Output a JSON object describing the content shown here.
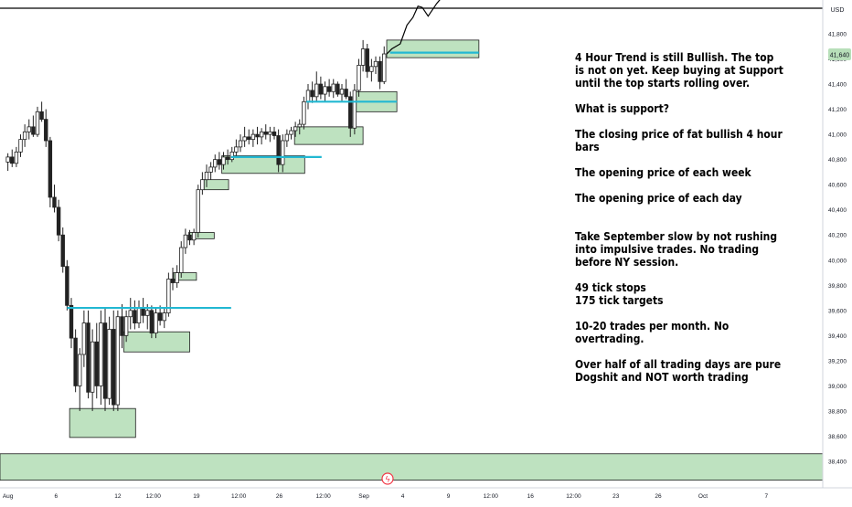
{
  "chart_data": {
    "type": "candlestick",
    "title": "",
    "currency_label": "USD",
    "last_price_label": "41,640",
    "y_ticks": [
      {
        "value": 41800,
        "label": "41,800"
      },
      {
        "value": 41600,
        "label": "41,600"
      },
      {
        "value": 41400,
        "label": "41,400"
      },
      {
        "value": 41200,
        "label": "41,200"
      },
      {
        "value": 41000,
        "label": "41,000"
      },
      {
        "value": 40800,
        "label": "40,800"
      },
      {
        "value": 40600,
        "label": "40,600"
      },
      {
        "value": 40400,
        "label": "40,400"
      },
      {
        "value": 40200,
        "label": "40,200"
      },
      {
        "value": 40000,
        "label": "40,000"
      },
      {
        "value": 39800,
        "label": "39,800"
      },
      {
        "value": 39600,
        "label": "39,600"
      },
      {
        "value": 39400,
        "label": "39,400"
      },
      {
        "value": 39200,
        "label": "39,200"
      },
      {
        "value": 39000,
        "label": "39,000"
      },
      {
        "value": 38800,
        "label": "38,800"
      },
      {
        "value": 38600,
        "label": "38,600"
      },
      {
        "value": 38400,
        "label": "38,400"
      }
    ],
    "x_ticks": [
      {
        "label": "Aug",
        "t": 0.5
      },
      {
        "label": "6",
        "t": 6.2
      },
      {
        "label": "12",
        "t": 13.5
      },
      {
        "label": "12:00",
        "t": 17.7
      },
      {
        "label": "19",
        "t": 22.8
      },
      {
        "label": "12:00",
        "t": 27.8
      },
      {
        "label": "26",
        "t": 32.6
      },
      {
        "label": "12:00",
        "t": 37.8
      },
      {
        "label": "Sep",
        "t": 42.6
      },
      {
        "label": "4",
        "t": 47.2
      },
      {
        "label": "9",
        "t": 52.6
      },
      {
        "label": "12:00",
        "t": 57.6
      },
      {
        "label": "16",
        "t": 62.3
      },
      {
        "label": "12:00",
        "t": 67.4
      },
      {
        "label": "23",
        "t": 72.4
      },
      {
        "label": "26",
        "t": 77.4
      },
      {
        "label": "Oct",
        "t": 82.7
      },
      {
        "label": "7",
        "t": 90.2
      }
    ],
    "support_zones": [
      {
        "t0": 7.8,
        "t1": 15.6,
        "y0": 38590,
        "y1": 38820
      },
      {
        "t0": 14.2,
        "t1": 22.0,
        "y0": 39270,
        "y1": 39430
      },
      {
        "t0": 20.1,
        "t1": 22.8,
        "y0": 39840,
        "y1": 39900
      },
      {
        "t0": 21.9,
        "t1": 24.9,
        "y0": 40170,
        "y1": 40220
      },
      {
        "t0": 23.7,
        "t1": 26.6,
        "y0": 40560,
        "y1": 40640
      },
      {
        "t0": 25.8,
        "t1": 35.6,
        "y0": 40690,
        "y1": 40830
      },
      {
        "t0": 34.4,
        "t1": 42.5,
        "y0": 40920,
        "y1": 41060
      },
      {
        "t0": 41.7,
        "t1": 46.5,
        "y0": 41180,
        "y1": 41340
      },
      {
        "t0": 45.3,
        "t1": 56.2,
        "y0": 41610,
        "y1": 41750
      },
      {
        "t0": 0,
        "t1": 100,
        "y0": 38250,
        "y1": 38460
      }
    ],
    "support_lines": [
      {
        "t0": 7.5,
        "t1": 26.9,
        "y": 39620
      },
      {
        "t0": 26.9,
        "t1": 37.6,
        "y": 40820
      },
      {
        "t0": 35.8,
        "t1": 46.5,
        "y": 41260
      },
      {
        "t0": 45.7,
        "t1": 56.2,
        "y": 41650
      }
    ],
    "projection_path": [
      [
        45.3,
        41640
      ],
      [
        45.9,
        41680
      ],
      [
        46.9,
        41720
      ],
      [
        47.7,
        41870
      ],
      [
        48.4,
        41930
      ],
      [
        49.0,
        42020
      ],
      [
        49.5,
        42010
      ],
      [
        50.2,
        41940
      ],
      [
        51.2,
        42040
      ],
      [
        52.2,
        42120
      ]
    ],
    "candles": [
      {
        "t": 0.5,
        "o": 40780,
        "h": 40850,
        "l": 40710,
        "c": 40820
      },
      {
        "t": 1.0,
        "o": 40820,
        "h": 40880,
        "l": 40740,
        "c": 40770
      },
      {
        "t": 1.5,
        "o": 40770,
        "h": 40900,
        "l": 40740,
        "c": 40860
      },
      {
        "t": 2.0,
        "o": 40860,
        "h": 41000,
        "l": 40820,
        "c": 40960
      },
      {
        "t": 2.5,
        "o": 40960,
        "h": 41080,
        "l": 40900,
        "c": 41020
      },
      {
        "t": 3.0,
        "o": 41020,
        "h": 41120,
        "l": 40960,
        "c": 41060
      },
      {
        "t": 3.5,
        "o": 41060,
        "h": 41150,
        "l": 40980,
        "c": 41000
      },
      {
        "t": 4.0,
        "o": 41000,
        "h": 41220,
        "l": 40980,
        "c": 41180
      },
      {
        "t": 4.5,
        "o": 41180,
        "h": 41260,
        "l": 41100,
        "c": 41120
      },
      {
        "t": 5.0,
        "o": 41120,
        "h": 41200,
        "l": 40900,
        "c": 40950
      },
      {
        "t": 5.5,
        "o": 40950,
        "h": 40980,
        "l": 40420,
        "c": 40500
      },
      {
        "t": 6.0,
        "o": 40500,
        "h": 40600,
        "l": 40380,
        "c": 40420
      },
      {
        "t": 6.5,
        "o": 40420,
        "h": 40480,
        "l": 40150,
        "c": 40200
      },
      {
        "t": 7.0,
        "o": 40200,
        "h": 40260,
        "l": 39900,
        "c": 39950
      },
      {
        "t": 7.5,
        "o": 39950,
        "h": 40000,
        "l": 39600,
        "c": 39640
      },
      {
        "t": 8.0,
        "o": 39640,
        "h": 39700,
        "l": 39300,
        "c": 39380
      },
      {
        "t": 8.5,
        "o": 39380,
        "h": 39450,
        "l": 38950,
        "c": 39000
      },
      {
        "t": 9.0,
        "o": 39000,
        "h": 39300,
        "l": 38800,
        "c": 39250
      },
      {
        "t": 9.5,
        "o": 39250,
        "h": 39600,
        "l": 39150,
        "c": 39500
      },
      {
        "t": 10.0,
        "o": 39500,
        "h": 39600,
        "l": 38900,
        "c": 38950
      },
      {
        "t": 10.5,
        "o": 38950,
        "h": 39450,
        "l": 38800,
        "c": 39350
      },
      {
        "t": 11.0,
        "o": 39350,
        "h": 39500,
        "l": 38900,
        "c": 39000
      },
      {
        "t": 11.5,
        "o": 39000,
        "h": 39600,
        "l": 38850,
        "c": 39500
      },
      {
        "t": 12.0,
        "o": 39500,
        "h": 39620,
        "l": 38800,
        "c": 38900
      },
      {
        "t": 12.5,
        "o": 38900,
        "h": 39550,
        "l": 38850,
        "c": 39450
      },
      {
        "t": 13.0,
        "o": 39450,
        "h": 39600,
        "l": 38800,
        "c": 38850
      },
      {
        "t": 13.5,
        "o": 38850,
        "h": 39600,
        "l": 38800,
        "c": 39550
      },
      {
        "t": 14.0,
        "o": 39550,
        "h": 39650,
        "l": 39300,
        "c": 39400
      },
      {
        "t": 14.5,
        "o": 39400,
        "h": 39600,
        "l": 39350,
        "c": 39550
      },
      {
        "t": 15.0,
        "o": 39550,
        "h": 39700,
        "l": 39450,
        "c": 39600
      },
      {
        "t": 15.5,
        "o": 39600,
        "h": 39680,
        "l": 39450,
        "c": 39500
      },
      {
        "t": 16.0,
        "o": 39500,
        "h": 39680,
        "l": 39460,
        "c": 39620
      },
      {
        "t": 16.5,
        "o": 39620,
        "h": 39700,
        "l": 39500,
        "c": 39560
      },
      {
        "t": 17.0,
        "o": 39560,
        "h": 39650,
        "l": 39450,
        "c": 39600
      },
      {
        "t": 17.5,
        "o": 39600,
        "h": 39640,
        "l": 39380,
        "c": 39420
      },
      {
        "t": 18.0,
        "o": 39420,
        "h": 39620,
        "l": 39380,
        "c": 39580
      },
      {
        "t": 18.5,
        "o": 39580,
        "h": 39640,
        "l": 39480,
        "c": 39520
      },
      {
        "t": 19.0,
        "o": 39520,
        "h": 39620,
        "l": 39460,
        "c": 39580
      },
      {
        "t": 19.5,
        "o": 39580,
        "h": 39900,
        "l": 39550,
        "c": 39850
      },
      {
        "t": 20.0,
        "o": 39850,
        "h": 39940,
        "l": 39760,
        "c": 39820
      },
      {
        "t": 20.5,
        "o": 39820,
        "h": 39960,
        "l": 39780,
        "c": 39900
      },
      {
        "t": 21.0,
        "o": 39900,
        "h": 40150,
        "l": 39860,
        "c": 40100
      },
      {
        "t": 21.5,
        "o": 40100,
        "h": 40250,
        "l": 40050,
        "c": 40200
      },
      {
        "t": 22.0,
        "o": 40200,
        "h": 40240,
        "l": 40120,
        "c": 40160
      },
      {
        "t": 22.5,
        "o": 40160,
        "h": 40250,
        "l": 40120,
        "c": 40220
      },
      {
        "t": 23.0,
        "o": 40220,
        "h": 40600,
        "l": 40180,
        "c": 40560
      },
      {
        "t": 23.5,
        "o": 40560,
        "h": 40700,
        "l": 40520,
        "c": 40640
      },
      {
        "t": 24.0,
        "o": 40640,
        "h": 40760,
        "l": 40580,
        "c": 40700
      },
      {
        "t": 24.5,
        "o": 40700,
        "h": 40780,
        "l": 40640,
        "c": 40740
      },
      {
        "t": 25.0,
        "o": 40740,
        "h": 40840,
        "l": 40700,
        "c": 40800
      },
      {
        "t": 25.5,
        "o": 40800,
        "h": 40860,
        "l": 40720,
        "c": 40760
      },
      {
        "t": 26.0,
        "o": 40760,
        "h": 40860,
        "l": 40720,
        "c": 40820
      },
      {
        "t": 26.5,
        "o": 40820,
        "h": 40880,
        "l": 40760,
        "c": 40800
      },
      {
        "t": 27.0,
        "o": 40800,
        "h": 40900,
        "l": 40780,
        "c": 40860
      },
      {
        "t": 27.5,
        "o": 40860,
        "h": 40960,
        "l": 40820,
        "c": 40900
      },
      {
        "t": 28.0,
        "o": 40900,
        "h": 41000,
        "l": 40860,
        "c": 40950
      },
      {
        "t": 28.5,
        "o": 40950,
        "h": 41060,
        "l": 40900,
        "c": 40980
      },
      {
        "t": 29.0,
        "o": 40980,
        "h": 41040,
        "l": 40920,
        "c": 40960
      },
      {
        "t": 29.5,
        "o": 40960,
        "h": 41040,
        "l": 40900,
        "c": 41000
      },
      {
        "t": 30.0,
        "o": 41000,
        "h": 41060,
        "l": 40920,
        "c": 40980
      },
      {
        "t": 30.5,
        "o": 40980,
        "h": 41050,
        "l": 40920,
        "c": 41020
      },
      {
        "t": 31.0,
        "o": 41020,
        "h": 41080,
        "l": 40960,
        "c": 41000
      },
      {
        "t": 31.5,
        "o": 41000,
        "h": 41060,
        "l": 40940,
        "c": 41020
      },
      {
        "t": 32.0,
        "o": 41020,
        "h": 41060,
        "l": 40960,
        "c": 40990
      },
      {
        "t": 32.5,
        "o": 40990,
        "h": 41040,
        "l": 40700,
        "c": 40760
      },
      {
        "t": 33.0,
        "o": 40760,
        "h": 41000,
        "l": 40700,
        "c": 40950
      },
      {
        "t": 33.5,
        "o": 40950,
        "h": 41040,
        "l": 40900,
        "c": 41000
      },
      {
        "t": 34.0,
        "o": 41000,
        "h": 41060,
        "l": 40960,
        "c": 41030
      },
      {
        "t": 34.5,
        "o": 41030,
        "h": 41100,
        "l": 40980,
        "c": 41060
      },
      {
        "t": 35.0,
        "o": 41060,
        "h": 41120,
        "l": 41000,
        "c": 41080
      },
      {
        "t": 35.5,
        "o": 41080,
        "h": 41300,
        "l": 41040,
        "c": 41260
      },
      {
        "t": 36.0,
        "o": 41260,
        "h": 41400,
        "l": 41200,
        "c": 41350
      },
      {
        "t": 36.5,
        "o": 41350,
        "h": 41420,
        "l": 41250,
        "c": 41300
      },
      {
        "t": 37.0,
        "o": 41300,
        "h": 41500,
        "l": 41260,
        "c": 41400
      },
      {
        "t": 37.5,
        "o": 41400,
        "h": 41460,
        "l": 41280,
        "c": 41320
      },
      {
        "t": 38.0,
        "o": 41320,
        "h": 41420,
        "l": 41260,
        "c": 41380
      },
      {
        "t": 38.5,
        "o": 41380,
        "h": 41440,
        "l": 41300,
        "c": 41340
      },
      {
        "t": 39.0,
        "o": 41340,
        "h": 41440,
        "l": 41290,
        "c": 41400
      },
      {
        "t": 39.5,
        "o": 41400,
        "h": 41420,
        "l": 41300,
        "c": 41320
      },
      {
        "t": 40.0,
        "o": 41320,
        "h": 41400,
        "l": 41260,
        "c": 41360
      },
      {
        "t": 40.5,
        "o": 41360,
        "h": 41440,
        "l": 41280,
        "c": 41300
      },
      {
        "t": 41.0,
        "o": 41300,
        "h": 41340,
        "l": 40980,
        "c": 41050
      },
      {
        "t": 41.5,
        "o": 41050,
        "h": 41400,
        "l": 41000,
        "c": 41350
      },
      {
        "t": 42.0,
        "o": 41350,
        "h": 41600,
        "l": 41300,
        "c": 41550
      },
      {
        "t": 42.5,
        "o": 41550,
        "h": 41750,
        "l": 41500,
        "c": 41680
      },
      {
        "t": 43.0,
        "o": 41680,
        "h": 41720,
        "l": 41450,
        "c": 41500
      },
      {
        "t": 43.5,
        "o": 41500,
        "h": 41600,
        "l": 41420,
        "c": 41540
      },
      {
        "t": 44.0,
        "o": 41540,
        "h": 41620,
        "l": 41480,
        "c": 41580
      },
      {
        "t": 44.5,
        "o": 41580,
        "h": 41620,
        "l": 41360,
        "c": 41420
      },
      {
        "t": 45.0,
        "o": 41420,
        "h": 41700,
        "l": 41400,
        "c": 41640
      }
    ]
  },
  "notes": [
    "4 Hour Trend is still Bullish. The top\nis not on yet. Keep buying at Support\nuntil the top starts rolling over.",
    "What is support?",
    "The closing price of fat bullish 4 hour\nbars",
    "The opening price of each week",
    "The opening price of each day",
    "Take September slow by not rushing\ninto impulsive trades.  No trading\nbefore NY session.",
    "49 tick stops\n175 tick targets",
    "10-20 trades per month. No\novertrading.",
    "Over half of all trading days are pure\nDogshit and NOT worth trading"
  ],
  "colors": {
    "zone_fill": "#b7dfb9",
    "zone_stroke": "#1b1b1b",
    "support_line": "#22b8d2",
    "candle": "#222222",
    "last_price_badge": "#b7dfb9",
    "grid_line": "#e0e3eb",
    "top_line": "#000000",
    "event_icon": "#f23645"
  }
}
